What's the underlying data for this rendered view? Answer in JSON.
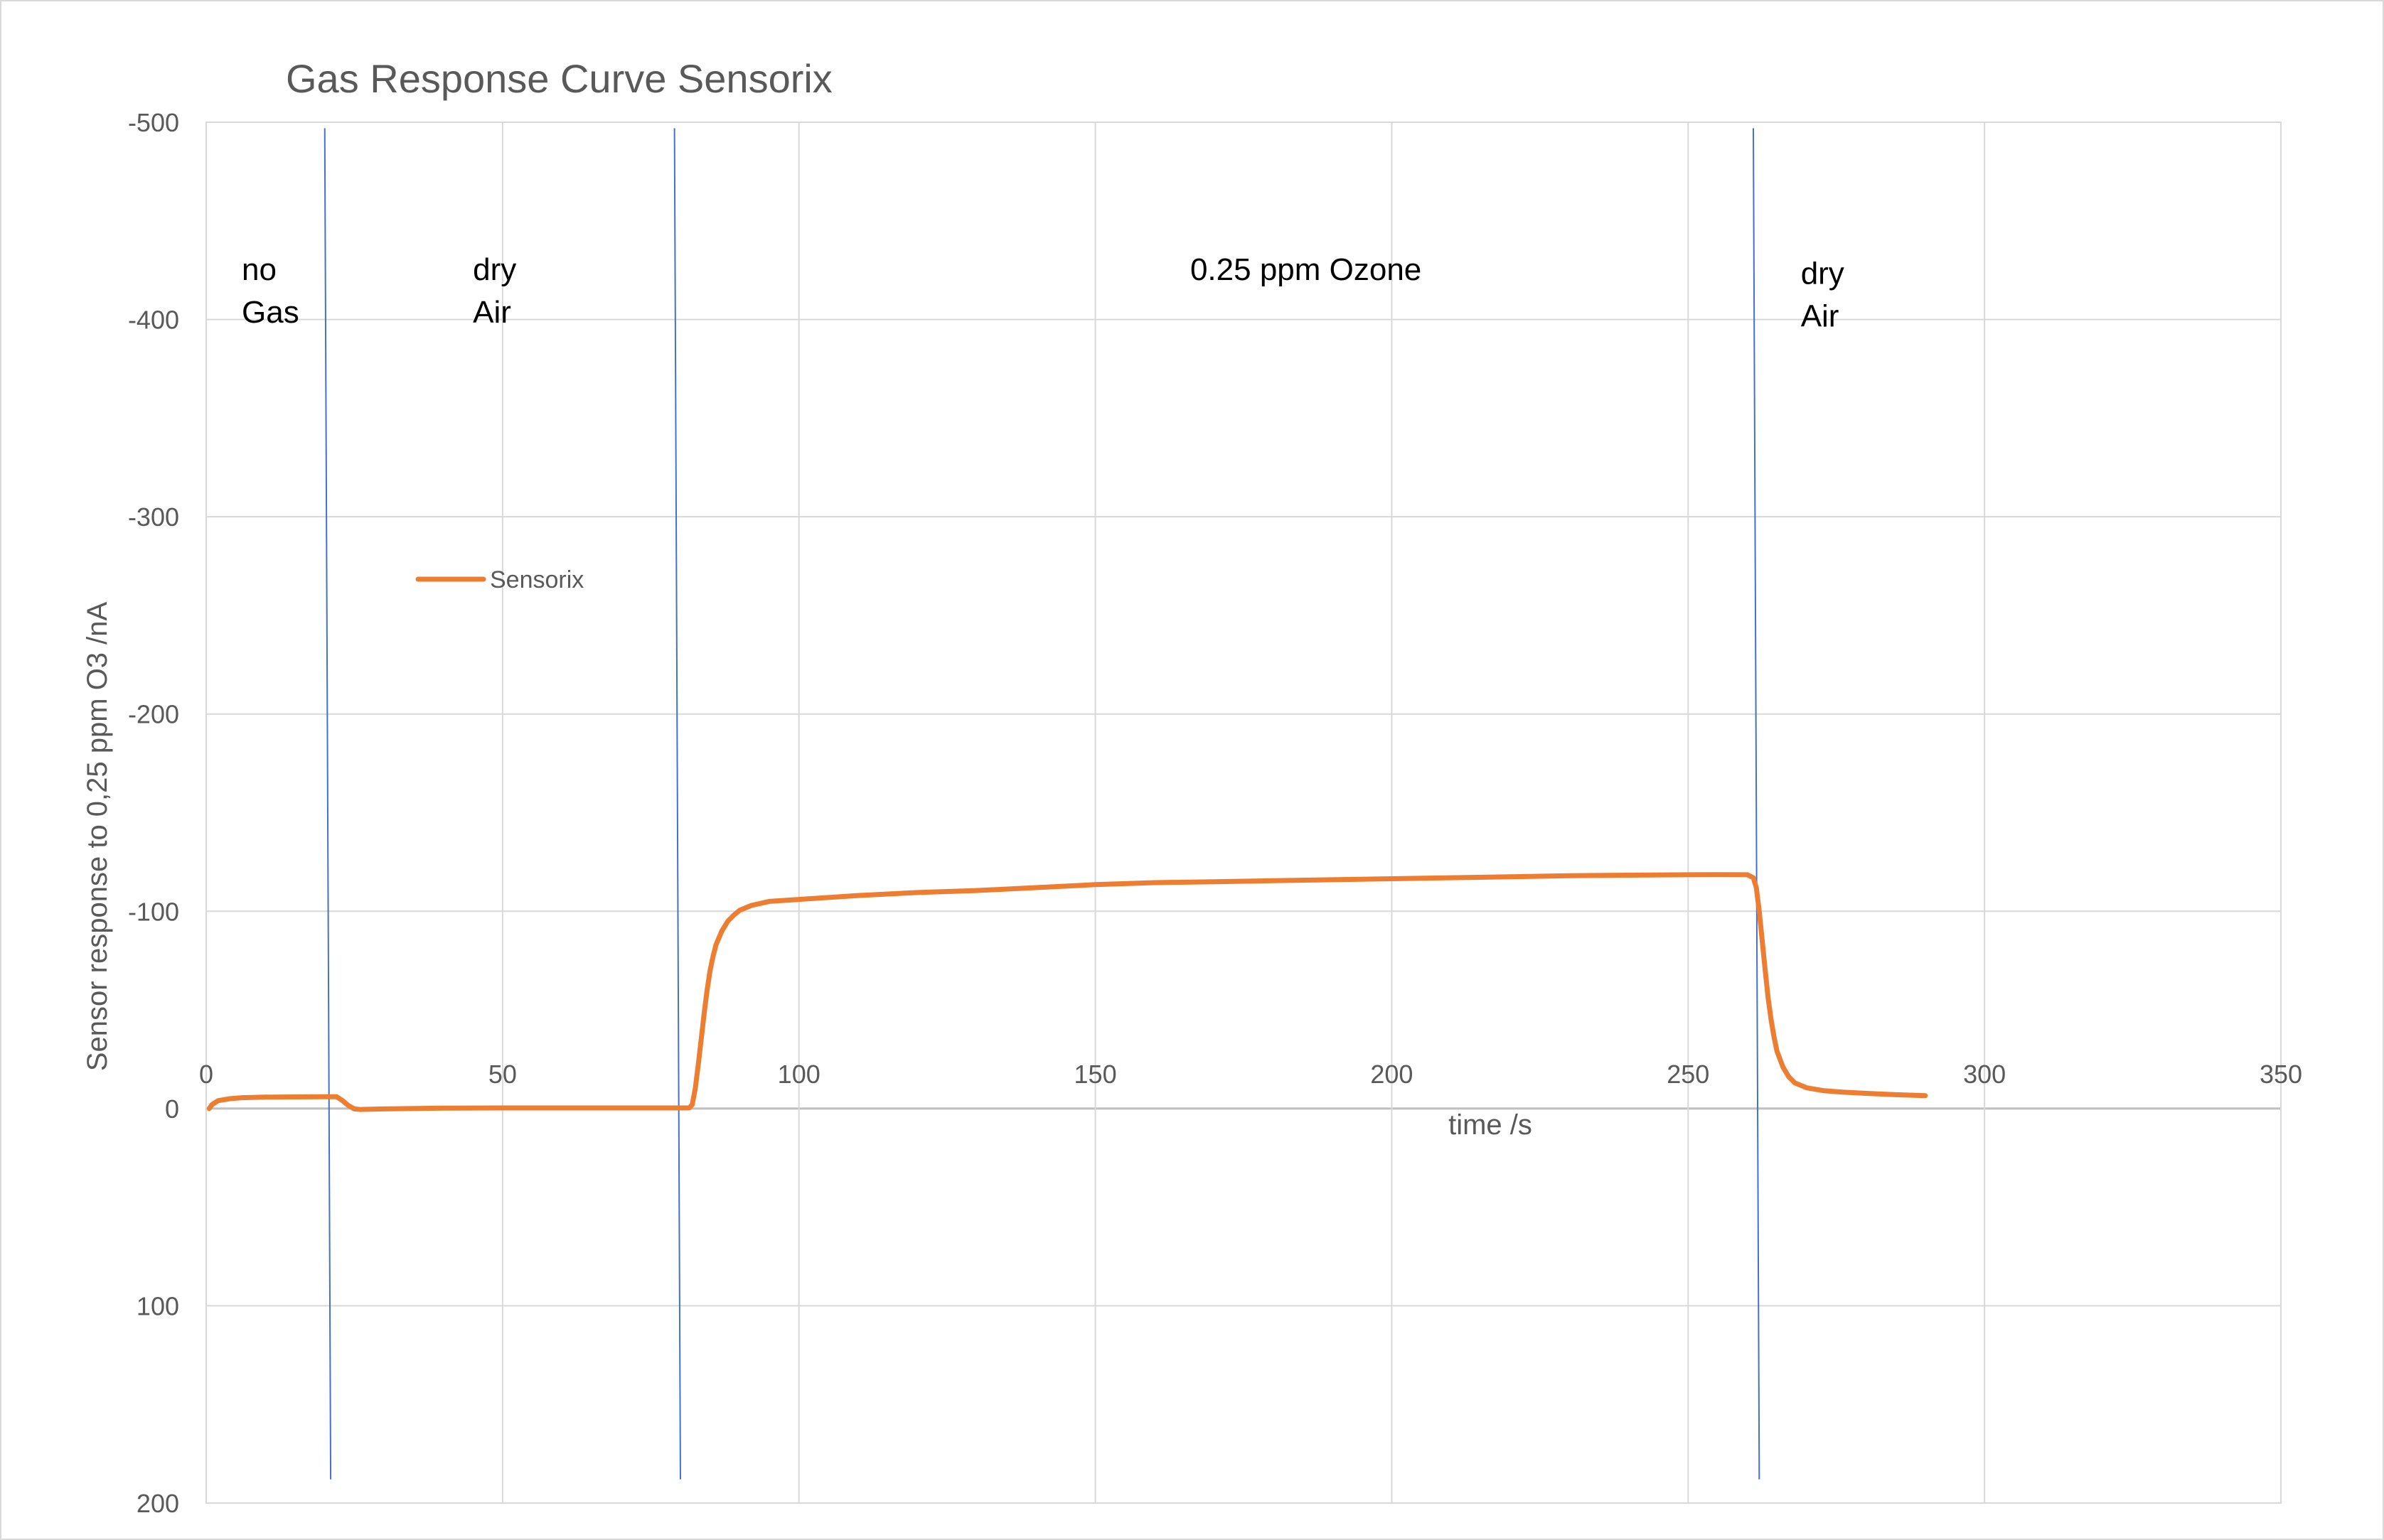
{
  "chart_data": {
    "type": "line",
    "title": "Gas Response Curve Sensorix",
    "xlabel": "time /s",
    "ylabel": "Sensor response to 0,25 ppm O3 /nA",
    "xlim": [
      0,
      350
    ],
    "ylim": [
      -500,
      200
    ],
    "y_axis_reversed": true,
    "x_ticks": [
      "0",
      "50",
      "100",
      "150",
      "200",
      "250",
      "300",
      "350"
    ],
    "x_tick_values": [
      0,
      50,
      100,
      150,
      200,
      250,
      300,
      350
    ],
    "y_ticks": [
      "-500",
      "-400",
      "-300",
      "-200",
      "-100",
      "0",
      "100",
      "200"
    ],
    "y_tick_values": [
      -500,
      -400,
      -300,
      -200,
      -100,
      0,
      100,
      200
    ],
    "grid": true,
    "legend_position": "upper-left inside plot",
    "series": [
      {
        "name": "Sensorix",
        "color": "#ed7d31",
        "points": [
          [
            0.5,
            0
          ],
          [
            1,
            -2
          ],
          [
            2,
            -4
          ],
          [
            4,
            -5
          ],
          [
            6,
            -5.5
          ],
          [
            10,
            -5.8
          ],
          [
            15,
            -5.9
          ],
          [
            20,
            -6
          ],
          [
            22,
            -6
          ],
          [
            23,
            -4
          ],
          [
            24,
            -1.5
          ],
          [
            25,
            0.2
          ],
          [
            26,
            0.5
          ],
          [
            30,
            0.2
          ],
          [
            40,
            -0.2
          ],
          [
            50,
            -0.3
          ],
          [
            60,
            -0.3
          ],
          [
            70,
            -0.3
          ],
          [
            80,
            -0.3
          ],
          [
            81.5,
            -0.3
          ],
          [
            82,
            -2
          ],
          [
            82.5,
            -10
          ],
          [
            83,
            -22
          ],
          [
            83.5,
            -35
          ],
          [
            84,
            -48
          ],
          [
            84.5,
            -60
          ],
          [
            85,
            -70
          ],
          [
            85.5,
            -77
          ],
          [
            86,
            -83
          ],
          [
            87,
            -90
          ],
          [
            88,
            -95
          ],
          [
            89,
            -98
          ],
          [
            90,
            -100.5
          ],
          [
            92,
            -103
          ],
          [
            95,
            -105
          ],
          [
            100,
            -106
          ],
          [
            110,
            -108
          ],
          [
            120,
            -109.5
          ],
          [
            130,
            -110.5
          ],
          [
            140,
            -112
          ],
          [
            150,
            -113.5
          ],
          [
            160,
            -114.5
          ],
          [
            170,
            -115
          ],
          [
            180,
            -115.5
          ],
          [
            190,
            -116
          ],
          [
            200,
            -116.5
          ],
          [
            210,
            -117
          ],
          [
            220,
            -117.5
          ],
          [
            230,
            -118
          ],
          [
            240,
            -118.3
          ],
          [
            250,
            -118.5
          ],
          [
            255,
            -118.6
          ],
          [
            260,
            -118.5
          ],
          [
            261,
            -117
          ],
          [
            261.5,
            -112
          ],
          [
            262,
            -100
          ],
          [
            262.5,
            -85
          ],
          [
            263,
            -70
          ],
          [
            263.5,
            -56
          ],
          [
            264,
            -45
          ],
          [
            264.5,
            -36
          ],
          [
            265,
            -29
          ],
          [
            266,
            -21
          ],
          [
            267,
            -16
          ],
          [
            268,
            -13
          ],
          [
            270,
            -10.5
          ],
          [
            273,
            -9
          ],
          [
            276,
            -8.3
          ],
          [
            280,
            -7.7
          ],
          [
            285,
            -7
          ],
          [
            290,
            -6.5
          ]
        ]
      }
    ],
    "phase_markers": [
      {
        "x_top": 20,
        "x_bottom": 21,
        "color": "#4472c4"
      },
      {
        "x_top": 79,
        "x_bottom": 80,
        "color": "#4472c4"
      },
      {
        "x_top": 261,
        "x_bottom": 262,
        "color": "#4472c4"
      }
    ],
    "annotations": [
      {
        "lines": [
          "no",
          "Gas"
        ],
        "x": 6,
        "y": -420
      },
      {
        "lines": [
          "dry",
          "Air"
        ],
        "x": 45,
        "y": -420
      },
      {
        "lines": [
          "0.25 ppm Ozone"
        ],
        "x": 166,
        "y": -420
      },
      {
        "lines": [
          "dry",
          "Air"
        ],
        "x": 269,
        "y": -418
      }
    ]
  }
}
